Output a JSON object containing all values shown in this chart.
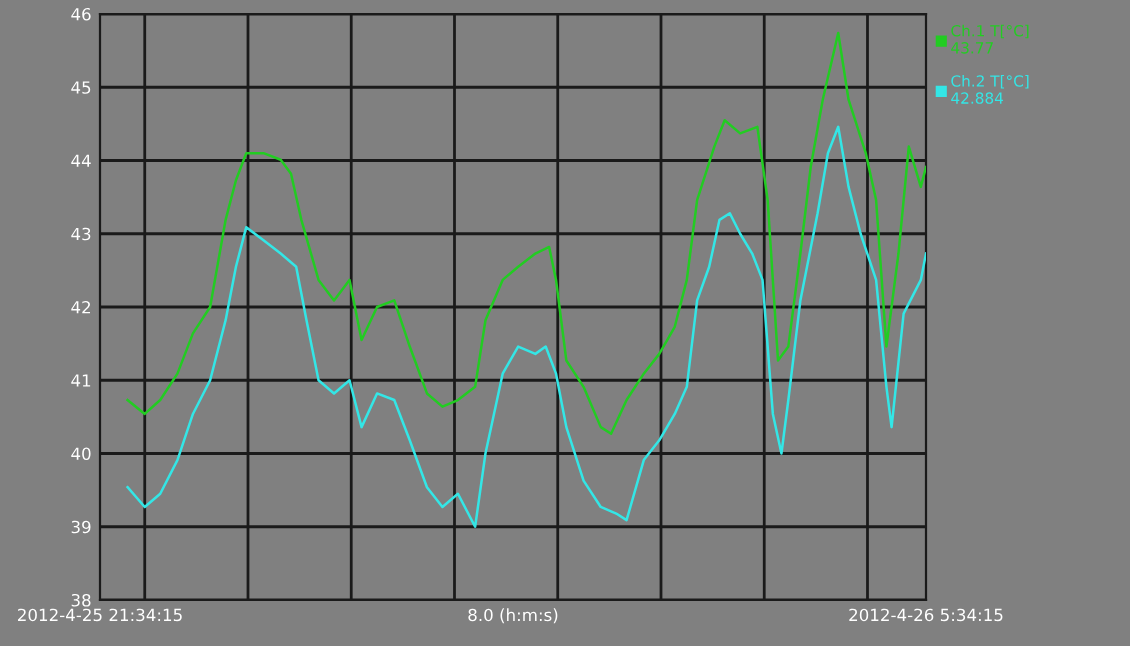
{
  "chart_data": {
    "type": "line",
    "xlim": [
      "2012-04-25T21:34",
      "2012-04-26T05:34"
    ],
    "xticks": [
      {
        "value": "2012-04-25T21:34",
        "label": "2012-4-25 21:34:15"
      },
      {
        "value": "2012-04-26T01:34",
        "label": "8.0 (h:m:s)"
      },
      {
        "value": "2012-04-26T05:34",
        "label": "2012-4-26 5:34:15"
      },
      {
        "value": "2012-04-25T22:00",
        "label": null
      },
      {
        "value": "2012-04-25T23:00",
        "label": null
      },
      {
        "value": "2012-04-26T00:00",
        "label": null
      },
      {
        "value": "2012-04-26T01:00",
        "label": null
      },
      {
        "value": "2012-04-26T02:00",
        "label": null
      },
      {
        "value": "2012-04-26T03:00",
        "label": null
      },
      {
        "value": "2012-04-26T04:00",
        "label": null
      },
      {
        "value": "2012-04-26T05:00",
        "label": null
      }
    ],
    "ylim": [
      38,
      46
    ],
    "yticks": [
      38,
      39,
      40,
      41,
      42,
      43,
      44,
      45,
      46
    ],
    "grid": true,
    "legend": "right",
    "marker": "none",
    "line_style": "solid",
    "series": [
      {
        "name": "Ch.1 T[°C]\n43.77",
        "color": "#22cc22",
        "x": [
          "2012-04-25T21:50",
          "2012-04-25T22:00",
          "2012-04-25T22:09",
          "2012-04-25T22:19",
          "2012-04-25T22:28",
          "2012-04-25T22:38",
          "2012-04-25T22:47",
          "2012-04-25T22:53",
          "2012-04-25T22:59",
          "2012-04-25T23:09",
          "2012-04-25T23:19",
          "2012-04-25T23:25",
          "2012-04-25T23:31",
          "2012-04-25T23:41",
          "2012-04-25T23:50",
          "2012-04-25T23:59",
          "2012-04-26T00:06",
          "2012-04-26T00:15",
          "2012-04-26T00:25",
          "2012-04-26T00:34",
          "2012-04-26T00:44",
          "2012-04-26T00:53",
          "2012-04-26T01:02",
          "2012-04-26T01:12",
          "2012-04-26T01:18",
          "2012-04-26T01:28",
          "2012-04-26T01:37",
          "2012-04-26T01:47",
          "2012-04-26T01:55",
          "2012-04-26T01:59",
          "2012-04-26T02:05",
          "2012-04-26T02:15",
          "2012-04-26T02:25",
          "2012-04-26T02:31",
          "2012-04-26T02:40",
          "2012-04-26T02:50",
          "2012-04-26T02:59",
          "2012-04-26T03:08",
          "2012-04-26T03:15",
          "2012-04-26T03:21",
          "2012-04-26T03:31",
          "2012-04-26T03:37",
          "2012-04-26T03:46",
          "2012-04-26T03:56",
          "2012-04-26T04:02",
          "2012-04-26T04:08",
          "2012-04-26T04:14",
          "2012-04-26T04:21",
          "2012-04-26T04:27",
          "2012-04-26T04:34",
          "2012-04-26T04:43",
          "2012-04-26T04:49",
          "2012-04-26T04:59",
          "2012-04-26T05:05",
          "2012-04-26T05:11",
          "2012-04-26T05:18",
          "2012-04-26T05:24",
          "2012-04-26T05:31",
          "2012-04-26T05:34"
        ],
        "values": [
          40.73,
          40.54,
          40.73,
          41.09,
          41.64,
          42.0,
          43.19,
          43.73,
          44.1,
          44.1,
          44.01,
          43.82,
          43.19,
          42.37,
          42.09,
          42.37,
          41.55,
          42.0,
          42.09,
          41.46,
          40.82,
          40.64,
          40.73,
          40.91,
          41.82,
          42.37,
          42.55,
          42.73,
          42.82,
          42.37,
          41.27,
          40.91,
          40.36,
          40.27,
          40.73,
          41.09,
          41.36,
          41.73,
          42.37,
          43.46,
          44.19,
          44.55,
          44.37,
          44.46,
          43.46,
          41.27,
          41.46,
          42.73,
          43.91,
          44.83,
          45.74,
          44.83,
          44.1,
          43.46,
          41.46,
          42.73,
          44.19,
          43.64,
          43.91
        ]
      },
      {
        "name": "Ch.2 T[°C]\n42.884",
        "color": "#33e6e6",
        "x": [
          "2012-04-25T21:50",
          "2012-04-25T22:00",
          "2012-04-25T22:09",
          "2012-04-25T22:19",
          "2012-04-25T22:28",
          "2012-04-25T22:38",
          "2012-04-25T22:47",
          "2012-04-25T22:53",
          "2012-04-25T22:59",
          "2012-04-25T23:09",
          "2012-04-25T23:19",
          "2012-04-25T23:28",
          "2012-04-25T23:34",
          "2012-04-25T23:41",
          "2012-04-25T23:50",
          "2012-04-25T23:59",
          "2012-04-26T00:06",
          "2012-04-26T00:15",
          "2012-04-26T00:25",
          "2012-04-26T00:34",
          "2012-04-26T00:44",
          "2012-04-26T00:53",
          "2012-04-26T01:02",
          "2012-04-26T01:12",
          "2012-04-26T01:18",
          "2012-04-26T01:28",
          "2012-04-26T01:37",
          "2012-04-26T01:47",
          "2012-04-26T01:53",
          "2012-04-26T01:59",
          "2012-04-26T02:05",
          "2012-04-26T02:15",
          "2012-04-26T02:25",
          "2012-04-26T02:34",
          "2012-04-26T02:40",
          "2012-04-26T02:50",
          "2012-04-26T02:59",
          "2012-04-26T03:08",
          "2012-04-26T03:15",
          "2012-04-26T03:21",
          "2012-04-26T03:28",
          "2012-04-26T03:34",
          "2012-04-26T03:40",
          "2012-04-26T03:46",
          "2012-04-26T03:53",
          "2012-04-26T03:59",
          "2012-04-26T04:05",
          "2012-04-26T04:10",
          "2012-04-26T04:14",
          "2012-04-26T04:21",
          "2012-04-26T04:31",
          "2012-04-26T04:37",
          "2012-04-26T04:43",
          "2012-04-26T04:49",
          "2012-04-26T04:56",
          "2012-04-26T05:05",
          "2012-04-26T05:11",
          "2012-04-26T05:14",
          "2012-04-26T05:21",
          "2012-04-26T05:31",
          "2012-04-26T05:34"
        ],
        "values": [
          39.54,
          39.27,
          39.45,
          39.91,
          40.54,
          41.0,
          41.82,
          42.55,
          43.09,
          42.91,
          42.73,
          42.55,
          41.82,
          41.0,
          40.82,
          41.0,
          40.36,
          40.82,
          40.73,
          40.18,
          39.54,
          39.27,
          39.45,
          39.0,
          40.0,
          41.09,
          41.46,
          41.36,
          41.46,
          41.09,
          40.36,
          39.63,
          39.27,
          39.18,
          39.09,
          39.91,
          40.18,
          40.54,
          40.91,
          42.09,
          42.55,
          43.19,
          43.28,
          43.0,
          42.73,
          42.37,
          40.54,
          40.0,
          40.73,
          42.09,
          43.28,
          44.1,
          44.46,
          43.64,
          43.0,
          42.37,
          40.91,
          40.36,
          41.91,
          42.37,
          42.73
        ]
      }
    ]
  }
}
